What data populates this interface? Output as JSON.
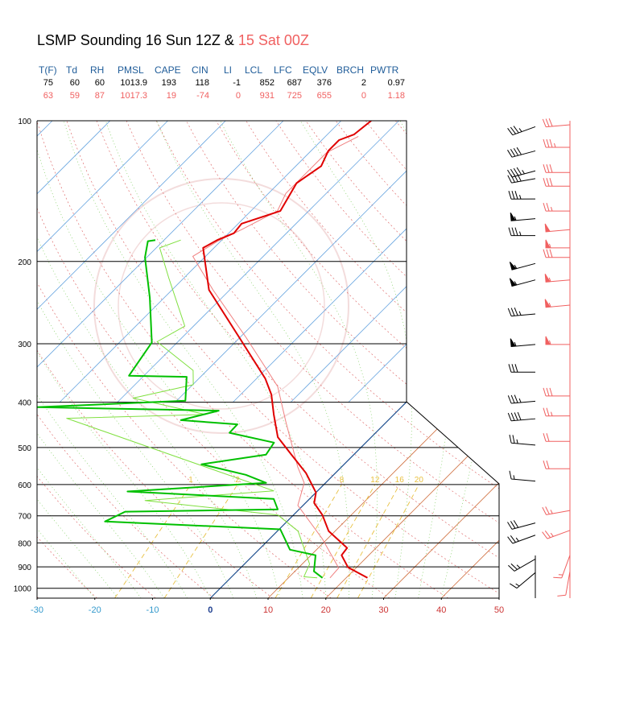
{
  "chart_data": {
    "type": "skewt",
    "title": "LSMP Sounding 16 Sun 12Z &",
    "subtitle": "15 Sat 00Z",
    "stats": {
      "headers": [
        "T(F)",
        "Td",
        "RH",
        "PMSL",
        "CAPE",
        "CIN",
        "LI",
        "LCL",
        "LFC",
        "EQLV",
        "BRCH",
        "PWTR"
      ],
      "rows": [
        [
          75,
          60,
          60,
          1013.9,
          193,
          118,
          -1,
          852,
          687,
          376,
          2,
          0.97
        ],
        [
          63,
          59,
          87,
          1017.3,
          19,
          -74,
          0,
          931,
          725,
          655,
          0,
          1.18
        ]
      ]
    },
    "ylim": [
      100,
      1050
    ],
    "yticks": [
      100,
      200,
      300,
      400,
      500,
      600,
      700,
      800,
      900,
      1000
    ],
    "xlim": [
      -30,
      50
    ],
    "xticks": [
      -30,
      -20,
      -10,
      0,
      10,
      20,
      30,
      40,
      50
    ],
    "mixing_ratios": [
      1,
      2,
      8,
      12,
      16,
      20
    ],
    "series": [
      {
        "color": "#f08080",
        "width": 1,
        "pressure": [
          950,
          905,
          785,
          665,
          595,
          550,
          442,
          370,
          291,
          230,
          195,
          181,
          171,
          156,
          143,
          117,
          108
        ],
        "temperature": [
          17.2,
          17.0,
          9.2,
          -0.9,
          -3.7,
          -7.6,
          -17.3,
          -25.0,
          -38.9,
          -52.9,
          -62.2,
          -60.5,
          -58.4,
          -55.4,
          -57,
          -57,
          -54.3
        ]
      },
      {
        "color": "#80e040",
        "width": 1,
        "pressure": [
          950,
          945,
          888,
          755,
          697,
          649,
          619,
          433,
          425,
          392,
          367,
          342,
          297,
          275,
          217,
          187,
          180
        ],
        "temperature": [
          15.0,
          12.5,
          11.3,
          3.6,
          -2.7,
          -28.2,
          -7.6,
          -56,
          -32.6,
          -48,
          -39.9,
          -42.4,
          -53.6,
          -51.5,
          -62.6,
          -69.4,
          -67.1
        ]
      },
      {
        "color": "#e00000",
        "width": 2,
        "pressure": [
          950,
          902,
          850,
          820,
          755,
          697,
          657,
          624,
          567,
          518,
          475,
          425,
          385,
          356,
          297,
          230,
          187,
          180,
          174,
          166,
          156,
          136,
          125,
          116,
          110,
          107,
          100
        ],
        "temperature": [
          23.7,
          18.5,
          15.3,
          15.0,
          8.9,
          5.0,
          1.5,
          0.0,
          -5.1,
          -10.8,
          -16.2,
          -20.8,
          -24.7,
          -28.5,
          -38.9,
          -53.6,
          -61.9,
          -60.8,
          -59.1,
          -59.4,
          -54.9,
          -56.9,
          -55.6,
          -57,
          -57,
          -55.4,
          -54.8
        ]
      },
      {
        "color": "#00c000",
        "width": 2,
        "pressure": [
          950,
          920,
          850,
          827,
          748,
          720,
          686,
          678,
          644,
          621,
          595,
          572,
          543,
          518,
          488,
          465,
          446,
          437,
          417,
          410,
          397,
          353,
          351,
          298,
          239,
          196,
          181,
          180
        ],
        "temperature": [
          15.9,
          13.3,
          10.8,
          5.4,
          0.2,
          -31.5,
          -29.7,
          -3.7,
          -6.2,
          -32.8,
          -10.3,
          -15.2,
          -24.7,
          -15.2,
          -15.9,
          -25.3,
          -25.4,
          -35.9,
          -31,
          -63,
          -38.5,
          -42.4,
          -52.6,
          -54.4,
          -62.5,
          -70.3,
          -72.6,
          -71.5
        ]
      }
    ],
    "winds": [
      {
        "color": "#000000",
        "pressure": [
          103,
          116,
          128,
          133,
          147,
          162,
          176,
          202,
          219,
          259,
          301,
          345,
          398,
          434,
          494,
          590,
          725,
          770,
          866,
          926
        ],
        "direction": [
          250,
          255,
          255,
          260,
          270,
          265,
          270,
          255,
          255,
          265,
          265,
          270,
          265,
          265,
          275,
          275,
          255,
          250,
          240,
          230
        ],
        "speed": [
          35,
          40,
          45,
          40,
          35,
          55,
          35,
          55,
          55,
          35,
          55,
          30,
          35,
          40,
          25,
          15,
          30,
          25,
          25,
          15
        ]
      },
      {
        "color": "#f06060",
        "pressure": [
          102,
          114,
          129,
          138,
          156,
          171,
          187,
          196,
          219,
          248,
          301,
          388,
          428,
          485,
          555,
          682,
          752,
          850,
          920
        ],
        "direction": [
          265,
          270,
          270,
          270,
          270,
          265,
          270,
          270,
          265,
          265,
          270,
          270,
          270,
          270,
          270,
          260,
          250,
          200,
          190
        ],
        "speed": [
          30,
          35,
          30,
          30,
          25,
          50,
          55,
          30,
          55,
          55,
          55,
          30,
          25,
          20,
          20,
          25,
          25,
          15,
          10
        ]
      }
    ]
  }
}
